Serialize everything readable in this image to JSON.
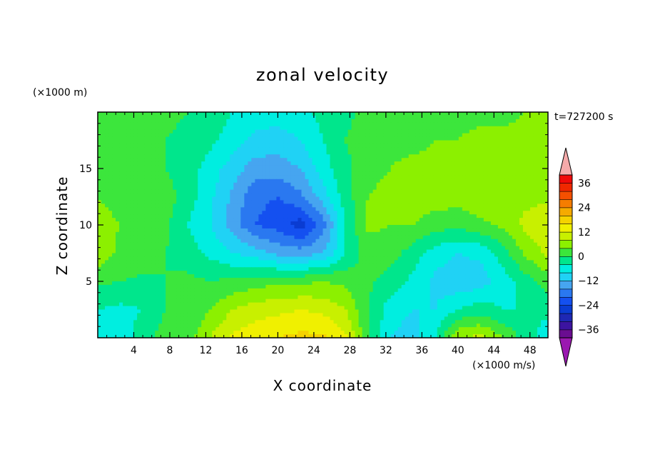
{
  "chart_data": {
    "type": "heatmap",
    "title": "zonal velocity",
    "xlabel": "X coordinate",
    "ylabel": "Z coordinate",
    "x_unit": "(×1000 m/s)",
    "y_unit": "(×1000 m)",
    "time_label": "t=727200 s",
    "xlim": [
      0,
      50
    ],
    "ylim": [
      0,
      20
    ],
    "x_ticks": [
      4,
      8,
      12,
      16,
      20,
      24,
      28,
      32,
      36,
      40,
      44,
      48
    ],
    "y_ticks": [
      5,
      10,
      15
    ],
    "colorbar": {
      "levels": [
        -40,
        -36,
        -32,
        -28,
        -24,
        -20,
        -16,
        -12,
        -8,
        -4,
        0,
        4,
        8,
        12,
        16,
        20,
        24,
        28,
        32,
        36,
        40
      ],
      "tick_labels": [
        "36",
        "24",
        "12",
        "0",
        "−12",
        "−24",
        "−36"
      ],
      "tick_values": [
        36,
        24,
        12,
        0,
        -12,
        -24,
        -36
      ],
      "colors": [
        "#6a0d91",
        "#3c14a0",
        "#1e28b4",
        "#0a3cd2",
        "#1450f0",
        "#2a78f0",
        "#46a5f0",
        "#20d2f5",
        "#00eee0",
        "#00e68c",
        "#3ce63c",
        "#8cf000",
        "#c8f000",
        "#f0f000",
        "#f5d200",
        "#f5aa00",
        "#f57d00",
        "#f55000",
        "#f02800",
        "#f00a0a"
      ],
      "under_color": "#9a18b0",
      "over_color": "#f5aaaa"
    },
    "grid": false,
    "field_samples": {
      "note_units": "zonal velocity in colorbar units",
      "x": [
        0,
        2.5,
        5,
        7.5,
        10,
        12.5,
        15,
        17.5,
        20,
        22.5,
        25,
        27.5,
        30,
        32.5,
        35,
        37.5,
        40,
        42.5,
        45,
        47.5,
        50
      ],
      "z": [
        0,
        2.5,
        5,
        7.5,
        10,
        12.5,
        15,
        17.5,
        20
      ],
      "values": [
        [
          -6,
          -6,
          -2,
          2,
          2,
          8,
          13,
          15,
          16,
          17,
          17,
          13,
          1,
          -8,
          -10,
          -4,
          8,
          9,
          4,
          -2,
          -6
        ],
        [
          -4,
          -5,
          -4,
          0,
          0,
          4,
          8,
          10,
          11,
          12,
          11,
          8,
          0,
          -6,
          -8,
          -8,
          -4,
          -2,
          -4,
          -4,
          -3
        ],
        [
          1,
          0,
          -1,
          0,
          1,
          0,
          1,
          2,
          3,
          3,
          4,
          3,
          1,
          -2,
          -5,
          -9,
          -11,
          -10,
          -6,
          -2,
          2
        ],
        [
          7,
          3,
          3,
          0,
          -2,
          -5,
          -8,
          -10,
          -13,
          -14,
          -12,
          -4,
          2,
          2,
          -2,
          -6,
          -8,
          -7,
          -2,
          5,
          9
        ],
        [
          5,
          4,
          3,
          1,
          -4,
          -8,
          -14,
          -20,
          -22,
          -26,
          -18,
          -4,
          5,
          4,
          4,
          2,
          1,
          3,
          5,
          9,
          11
        ],
        [
          4,
          3,
          2,
          2,
          -2,
          -7,
          -13,
          -19,
          -20,
          -17,
          -10,
          -2,
          4,
          6,
          6,
          6,
          6,
          7,
          7,
          7,
          7
        ],
        [
          2,
          2,
          1,
          0,
          -2,
          -6,
          -10,
          -14,
          -14,
          -12,
          -6,
          -1,
          2,
          4,
          5,
          5,
          5,
          6,
          6,
          6,
          6
        ],
        [
          3,
          2,
          1,
          0,
          -1,
          -3,
          -6,
          -9,
          -10,
          -8,
          -4,
          0,
          2,
          3,
          3,
          4,
          4,
          5,
          5,
          5,
          5
        ],
        [
          4,
          3,
          2,
          1,
          0,
          -2,
          -4,
          -6,
          -6,
          -5,
          -3,
          -1,
          1,
          2,
          2,
          3,
          3,
          3,
          3,
          4,
          4
        ]
      ]
    }
  }
}
